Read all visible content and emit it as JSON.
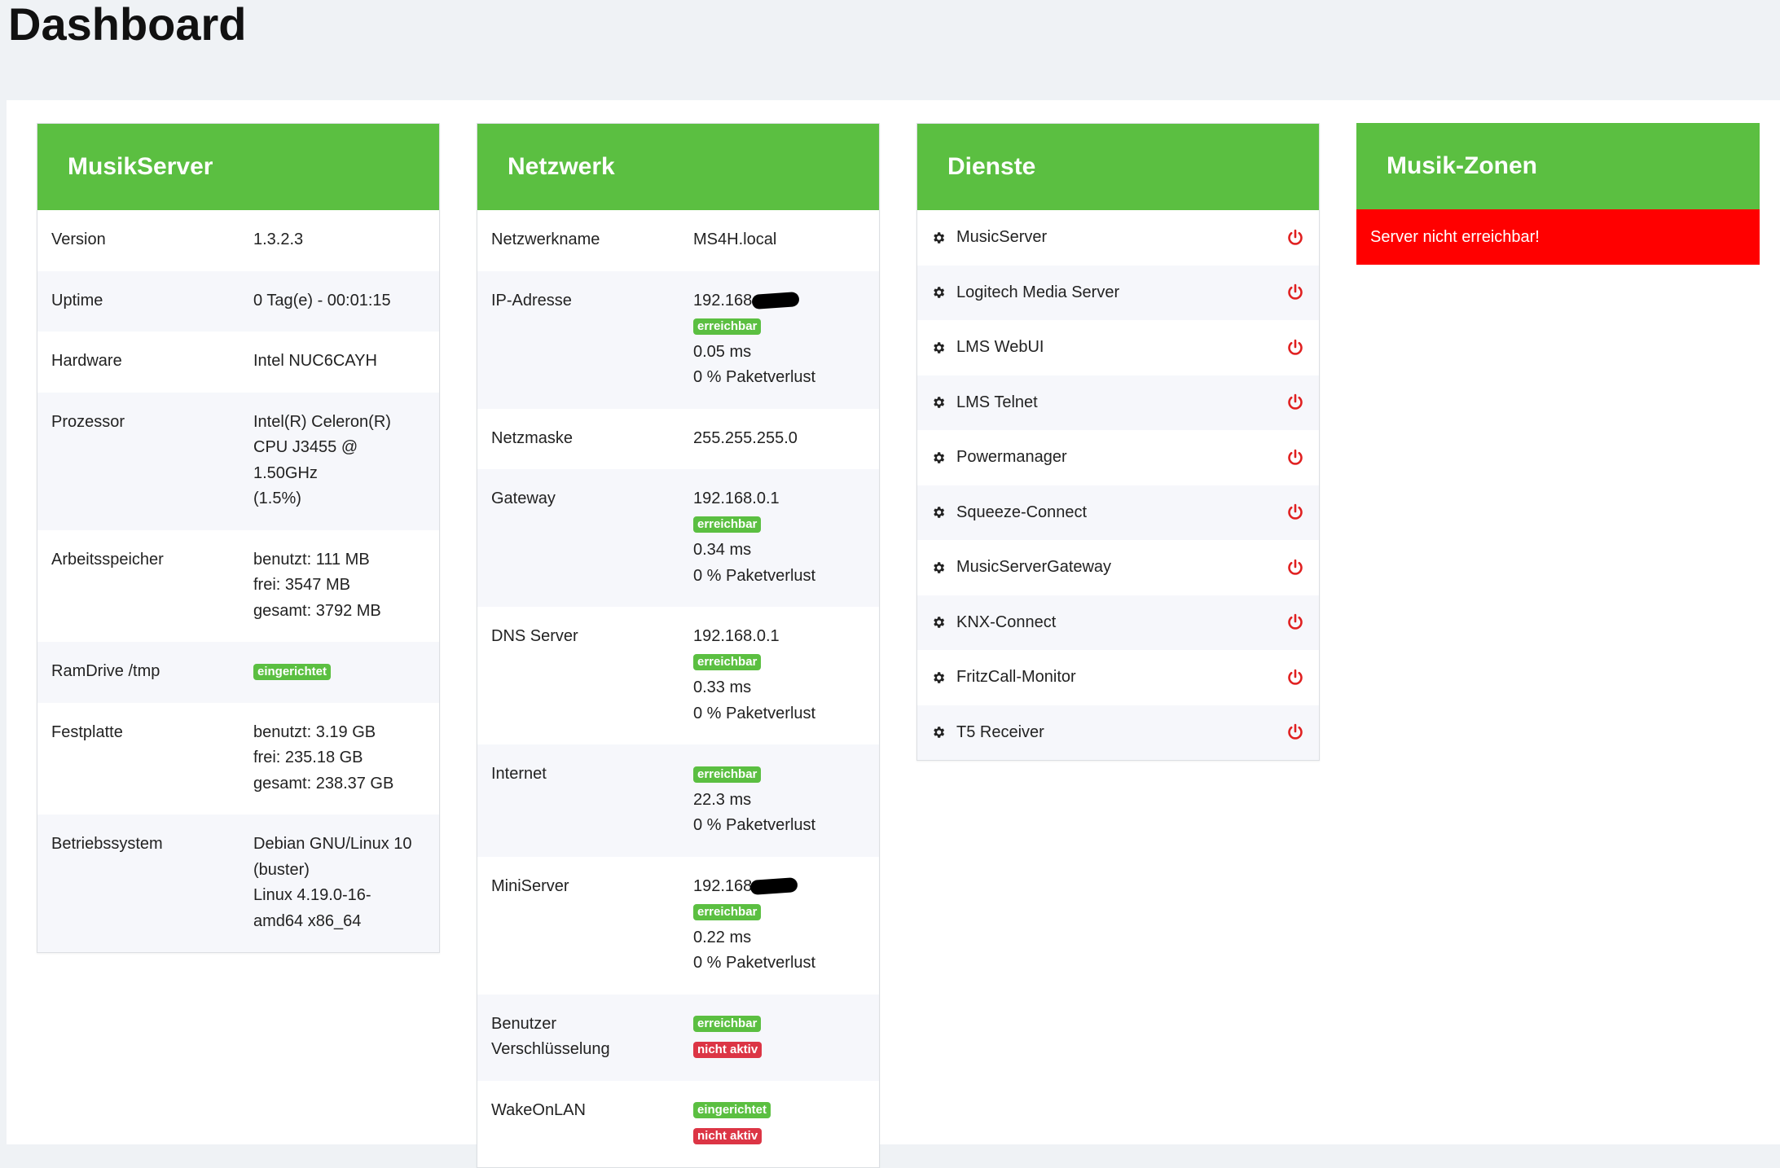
{
  "page_title": "Dashboard",
  "cards": {
    "musikserver": {
      "title": "MusikServer",
      "rows": [
        {
          "label": "Version",
          "lines": [
            "1.3.2.3"
          ]
        },
        {
          "label": "Uptime",
          "lines": [
            "0 Tag(e) - 00:01:15"
          ]
        },
        {
          "label": "Hardware",
          "lines": [
            "Intel NUC6CAYH"
          ]
        },
        {
          "label": "Prozessor",
          "lines": [
            "Intel(R) Celeron(R)",
            "CPU J3455 @",
            "1.50GHz",
            "(1.5%)"
          ]
        },
        {
          "label": "Arbeitsspeicher",
          "lines": [
            "benutzt: 111 MB",
            "frei: 3547 MB",
            "gesamt: 3792 MB"
          ]
        },
        {
          "label": "RamDrive /tmp",
          "badge": "eingerichtet"
        },
        {
          "label": "Festplatte",
          "lines": [
            "benutzt: 3.19 GB",
            "frei: 235.18 GB",
            "gesamt: 238.37 GB"
          ]
        },
        {
          "label": "Betriebssystem",
          "lines": [
            "Debian GNU/Linux 10",
            "(buster)",
            "Linux 4.19.0-16-",
            "amd64 x86_64"
          ]
        }
      ]
    },
    "netzwerk": {
      "title": "Netzwerk",
      "rows": [
        {
          "label": "Netzwerkname",
          "value": "MS4H.local"
        },
        {
          "label": "IP-Adresse",
          "ip": "192.168.",
          "badge": "erreichbar",
          "ping": "0.05 ms",
          "loss": "0 % Paketverlust"
        },
        {
          "label": "Netzmaske",
          "value": "255.255.255.0"
        },
        {
          "label": "Gateway",
          "ip": "192.168.0.1",
          "badge": "erreichbar",
          "ping": "0.34 ms",
          "loss": "0 % Paketverlust"
        },
        {
          "label": "DNS Server",
          "ip": "192.168.0.1",
          "badge": "erreichbar",
          "ping": "0.33 ms",
          "loss": "0 % Paketverlust"
        },
        {
          "label": "Internet",
          "badge": "erreichbar",
          "ping": "22.3 ms",
          "loss": "0 % Paketverlust"
        },
        {
          "label": "MiniServer",
          "ip": "192.168",
          "badge": "erreichbar",
          "ping": "0.22 ms",
          "loss": "0 % Paketverlust"
        },
        {
          "label1": "Benutzer",
          "label2": "Verschlüsselung",
          "badge1": "erreichbar",
          "badge2": "nicht aktiv"
        },
        {
          "label": "WakeOnLAN",
          "badge1": "eingerichtet",
          "badge2": "nicht aktiv"
        }
      ]
    },
    "dienste": {
      "title": "Dienste",
      "services": [
        "MusicServer",
        "Logitech Media Server",
        "LMS WebUI",
        "LMS Telnet",
        "Powermanager",
        "Squeeze-Connect",
        "MusicServerGateway",
        "KNX-Connect",
        "FritzCall-Monitor",
        "T5 Receiver"
      ]
    },
    "zonen": {
      "title": "Musik-Zonen",
      "alert": "Server nicht erreichbar!"
    }
  },
  "colors": {
    "header_green": "#5bbf41",
    "badge_ok": "#5bbf41",
    "badge_bad": "#dc3545",
    "alert_red": "#ff0000",
    "power_red": "#e02020"
  },
  "icons": {
    "service_icon": "gear-icon",
    "service_action": "power-icon"
  }
}
